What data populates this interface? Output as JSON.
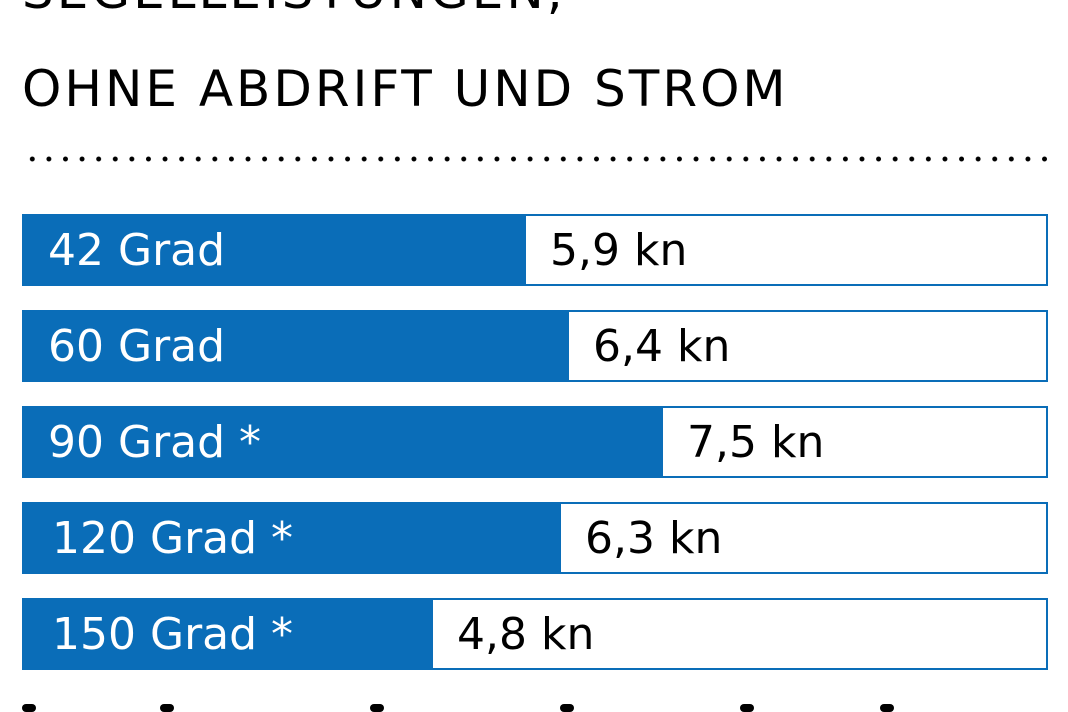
{
  "header": {
    "title_line_1": "SEGELLEISTUNGEN,",
    "title_line_2": "OHNE ABDRIFT UND STROM"
  },
  "colors": {
    "bar_fill": "#0a6db8",
    "bar_outline": "#0a6db8",
    "text": "#000000"
  },
  "chart_data": {
    "type": "bar",
    "orientation": "horizontal",
    "categories": [
      "42 Grad",
      "60 Grad",
      "90 Grad *",
      "120 Grad *",
      "150 Grad *"
    ],
    "values": [
      5.9,
      6.4,
      7.5,
      6.3,
      4.8
    ],
    "value_labels": [
      "5,9 kn",
      "6,4 kn",
      "7,5 kn",
      "6,3 kn",
      "4,8 kn"
    ],
    "unit": "kn",
    "xlim": [
      0,
      12
    ],
    "grid": false
  }
}
